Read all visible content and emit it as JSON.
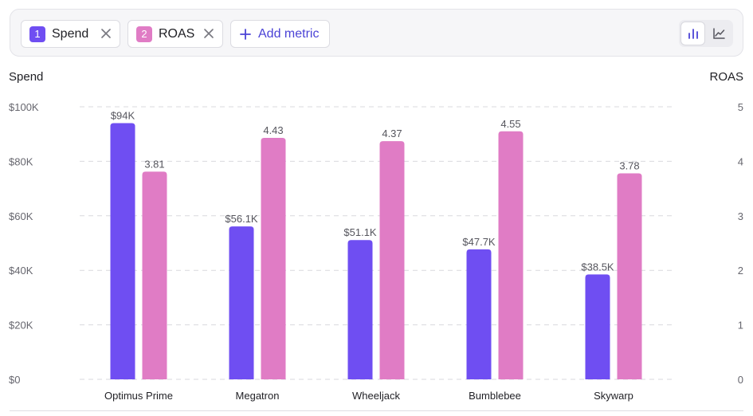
{
  "toolbar": {
    "metrics": [
      {
        "num": "1",
        "label": "Spend",
        "color": "#6f4ef2"
      },
      {
        "num": "2",
        "label": "ROAS",
        "color": "#e07cc5"
      }
    ],
    "add_metric_label": "Add metric",
    "view_active": "bar"
  },
  "chart_data": {
    "type": "bar",
    "categories": [
      "Optimus Prime",
      "Megatron",
      "Wheeljack",
      "Bumblebee",
      "Skywarp"
    ],
    "series": [
      {
        "name": "Spend",
        "axis": "left",
        "color": "#6f4ef2",
        "values": [
          94000,
          56100,
          51100,
          47700,
          38500
        ],
        "labels": [
          "$94K",
          "$56.1K",
          "$51.1K",
          "$47.7K",
          "$38.5K"
        ]
      },
      {
        "name": "ROAS",
        "axis": "right",
        "color": "#e07cc5",
        "values": [
          3.81,
          4.43,
          4.37,
          4.55,
          3.78
        ],
        "labels": [
          "3.81",
          "4.43",
          "4.37",
          "4.55",
          "3.78"
        ]
      }
    ],
    "ylabel_left": "Spend",
    "ylabel_right": "ROAS",
    "ylim_left": [
      0,
      100000
    ],
    "ylim_right": [
      0,
      5
    ],
    "yticks_left": [
      "$0",
      "$20K",
      "$40K",
      "$60K",
      "$80K",
      "$100K"
    ],
    "yticks_right": [
      "0",
      "1",
      "2",
      "3",
      "4",
      "5"
    ],
    "grid": true
  }
}
